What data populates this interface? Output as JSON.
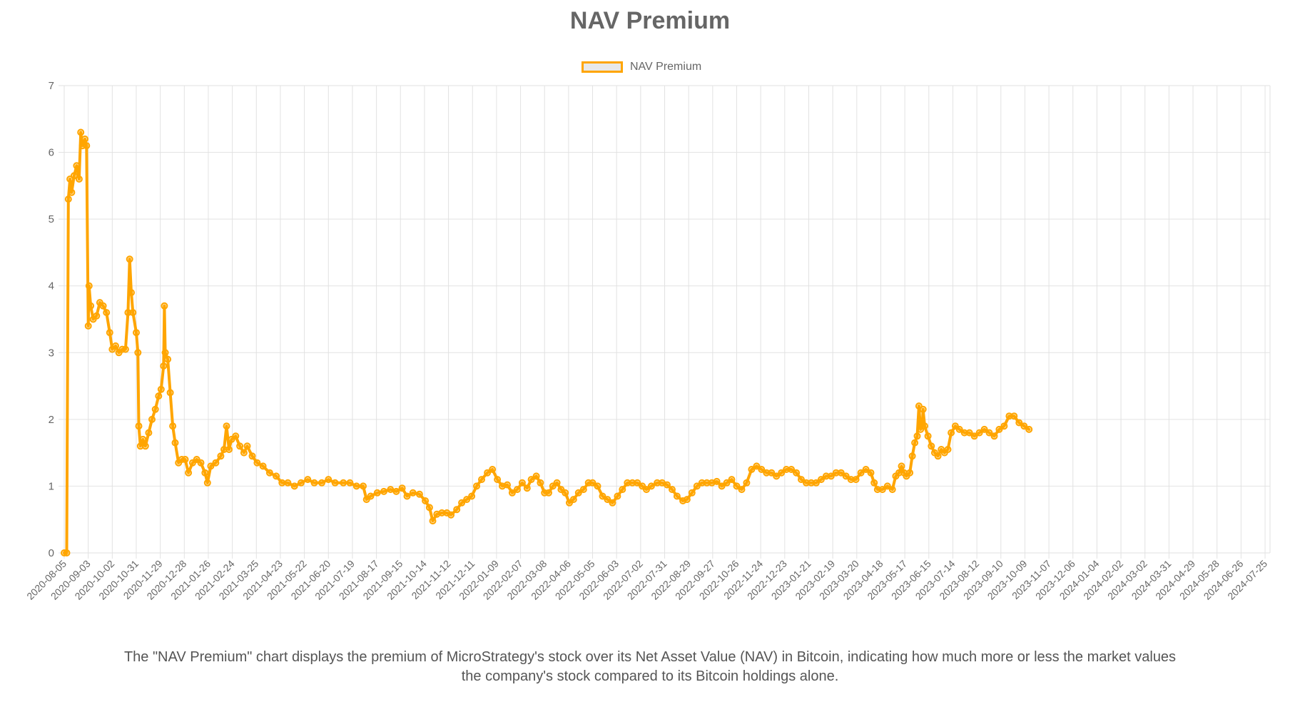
{
  "chart_data": {
    "type": "line",
    "title": "NAV Premium",
    "xlabel": "",
    "ylabel": "",
    "ylim": [
      0,
      7
    ],
    "y_ticks": [
      "0",
      "1",
      "2",
      "3",
      "4",
      "5",
      "6",
      "7"
    ],
    "x_tick_labels": [
      "2020-08-05",
      "2020-09-03",
      "2020-10-02",
      "2020-10-31",
      "2020-11-29",
      "2020-12-28",
      "2021-01-26",
      "2021-02-24",
      "2021-03-25",
      "2021-04-23",
      "2021-05-22",
      "2021-06-20",
      "2021-07-19",
      "2021-08-17",
      "2021-09-15",
      "2021-10-14",
      "2021-11-12",
      "2021-12-11",
      "2022-01-09",
      "2022-02-07",
      "2022-03-08",
      "2022-04-06",
      "2022-05-05",
      "2022-06-03",
      "2022-07-02",
      "2022-07-31",
      "2022-08-29",
      "2022-09-27",
      "2022-10-26",
      "2022-11-24",
      "2022-12-23",
      "2023-01-21",
      "2023-02-19",
      "2023-03-20",
      "2023-04-18",
      "2023-05-17",
      "2023-06-15",
      "2023-07-14",
      "2023-08-12",
      "2023-09-10",
      "2023-10-09",
      "2023-11-07",
      "2023-12-06",
      "2024-01-04",
      "2024-02-02",
      "2024-03-02",
      "2024-03-31",
      "2024-04-29",
      "2024-05-28",
      "2024-06-26",
      "2024-07-25"
    ],
    "x_range_dates": [
      "2020-08-05",
      "2024-07-31"
    ],
    "grid": true,
    "legend_position": "top",
    "series": [
      {
        "name": "NAV Premium",
        "color": "#FFA500",
        "points": [
          [
            "2020-08-05",
            0.0
          ],
          [
            "2020-08-08",
            0.0
          ],
          [
            "2020-08-10",
            5.3
          ],
          [
            "2020-08-12",
            5.6
          ],
          [
            "2020-08-14",
            5.4
          ],
          [
            "2020-08-17",
            5.65
          ],
          [
            "2020-08-20",
            5.8
          ],
          [
            "2020-08-23",
            5.6
          ],
          [
            "2020-08-25",
            6.3
          ],
          [
            "2020-08-27",
            6.1
          ],
          [
            "2020-08-30",
            6.2
          ],
          [
            "2020-09-01",
            6.1
          ],
          [
            "2020-09-03",
            3.4
          ],
          [
            "2020-09-04",
            4.0
          ],
          [
            "2020-09-06",
            3.7
          ],
          [
            "2020-09-09",
            3.5
          ],
          [
            "2020-09-13",
            3.55
          ],
          [
            "2020-09-17",
            3.75
          ],
          [
            "2020-09-21",
            3.7
          ],
          [
            "2020-09-25",
            3.6
          ],
          [
            "2020-09-29",
            3.3
          ],
          [
            "2020-10-02",
            3.05
          ],
          [
            "2020-10-06",
            3.1
          ],
          [
            "2020-10-10",
            3.0
          ],
          [
            "2020-10-14",
            3.05
          ],
          [
            "2020-10-18",
            3.05
          ],
          [
            "2020-10-21",
            3.6
          ],
          [
            "2020-10-23",
            4.4
          ],
          [
            "2020-10-25",
            3.9
          ],
          [
            "2020-10-27",
            3.6
          ],
          [
            "2020-10-31",
            3.3
          ],
          [
            "2020-11-02",
            3.0
          ],
          [
            "2020-11-03",
            1.9
          ],
          [
            "2020-11-05",
            1.6
          ],
          [
            "2020-11-08",
            1.7
          ],
          [
            "2020-11-11",
            1.6
          ],
          [
            "2020-11-15",
            1.8
          ],
          [
            "2020-11-19",
            2.0
          ],
          [
            "2020-11-23",
            2.15
          ],
          [
            "2020-11-27",
            2.35
          ],
          [
            "2020-11-30",
            2.45
          ],
          [
            "2020-12-03",
            2.8
          ],
          [
            "2020-12-04",
            3.7
          ],
          [
            "2020-12-05",
            3.0
          ],
          [
            "2020-12-08",
            2.9
          ],
          [
            "2020-12-11",
            2.4
          ],
          [
            "2020-12-14",
            1.9
          ],
          [
            "2020-12-17",
            1.65
          ],
          [
            "2020-12-21",
            1.35
          ],
          [
            "2020-12-25",
            1.4
          ],
          [
            "2020-12-29",
            1.4
          ],
          [
            "2021-01-02",
            1.2
          ],
          [
            "2021-01-07",
            1.35
          ],
          [
            "2021-01-12",
            1.4
          ],
          [
            "2021-01-17",
            1.35
          ],
          [
            "2021-01-22",
            1.2
          ],
          [
            "2021-01-25",
            1.05
          ],
          [
            "2021-01-29",
            1.3
          ],
          [
            "2021-02-04",
            1.35
          ],
          [
            "2021-02-10",
            1.45
          ],
          [
            "2021-02-14",
            1.55
          ],
          [
            "2021-02-17",
            1.9
          ],
          [
            "2021-02-20",
            1.55
          ],
          [
            "2021-02-23",
            1.7
          ],
          [
            "2021-02-28",
            1.75
          ],
          [
            "2021-03-05",
            1.6
          ],
          [
            "2021-03-10",
            1.5
          ],
          [
            "2021-03-14",
            1.6
          ],
          [
            "2021-03-20",
            1.45
          ],
          [
            "2021-03-26",
            1.35
          ],
          [
            "2021-04-02",
            1.3
          ],
          [
            "2021-04-10",
            1.2
          ],
          [
            "2021-04-18",
            1.15
          ],
          [
            "2021-04-25",
            1.05
          ],
          [
            "2021-05-02",
            1.05
          ],
          [
            "2021-05-10",
            1.0
          ],
          [
            "2021-05-18",
            1.05
          ],
          [
            "2021-05-26",
            1.1
          ],
          [
            "2021-06-03",
            1.05
          ],
          [
            "2021-06-12",
            1.05
          ],
          [
            "2021-06-20",
            1.1
          ],
          [
            "2021-06-28",
            1.05
          ],
          [
            "2021-07-08",
            1.05
          ],
          [
            "2021-07-16",
            1.05
          ],
          [
            "2021-07-24",
            1.0
          ],
          [
            "2021-08-01",
            1.0
          ],
          [
            "2021-08-05",
            0.8
          ],
          [
            "2021-08-10",
            0.85
          ],
          [
            "2021-08-18",
            0.9
          ],
          [
            "2021-08-26",
            0.92
          ],
          [
            "2021-09-03",
            0.95
          ],
          [
            "2021-09-10",
            0.92
          ],
          [
            "2021-09-17",
            0.97
          ],
          [
            "2021-09-23",
            0.85
          ],
          [
            "2021-09-30",
            0.9
          ],
          [
            "2021-10-08",
            0.88
          ],
          [
            "2021-10-15",
            0.78
          ],
          [
            "2021-10-20",
            0.68
          ],
          [
            "2021-10-24",
            0.48
          ],
          [
            "2021-10-29",
            0.58
          ],
          [
            "2021-11-04",
            0.6
          ],
          [
            "2021-11-10",
            0.6
          ],
          [
            "2021-11-15",
            0.57
          ],
          [
            "2021-11-22",
            0.65
          ],
          [
            "2021-11-28",
            0.75
          ],
          [
            "2021-12-04",
            0.8
          ],
          [
            "2021-12-10",
            0.85
          ],
          [
            "2021-12-16",
            1.0
          ],
          [
            "2021-12-22",
            1.1
          ],
          [
            "2021-12-29",
            1.2
          ],
          [
            "2022-01-04",
            1.25
          ],
          [
            "2022-01-10",
            1.1
          ],
          [
            "2022-01-16",
            1.0
          ],
          [
            "2022-01-22",
            1.02
          ],
          [
            "2022-01-28",
            0.9
          ],
          [
            "2022-02-03",
            0.95
          ],
          [
            "2022-02-09",
            1.05
          ],
          [
            "2022-02-15",
            0.97
          ],
          [
            "2022-02-20",
            1.1
          ],
          [
            "2022-02-26",
            1.15
          ],
          [
            "2022-03-03",
            1.05
          ],
          [
            "2022-03-08",
            0.9
          ],
          [
            "2022-03-13",
            0.9
          ],
          [
            "2022-03-18",
            1.0
          ],
          [
            "2022-03-23",
            1.05
          ],
          [
            "2022-03-28",
            0.95
          ],
          [
            "2022-04-02",
            0.9
          ],
          [
            "2022-04-07",
            0.75
          ],
          [
            "2022-04-12",
            0.8
          ],
          [
            "2022-04-18",
            0.9
          ],
          [
            "2022-04-24",
            0.95
          ],
          [
            "2022-04-30",
            1.05
          ],
          [
            "2022-05-05",
            1.05
          ],
          [
            "2022-05-11",
            1.0
          ],
          [
            "2022-05-17",
            0.85
          ],
          [
            "2022-05-23",
            0.8
          ],
          [
            "2022-05-29",
            0.75
          ],
          [
            "2022-06-04",
            0.85
          ],
          [
            "2022-06-10",
            0.95
          ],
          [
            "2022-06-16",
            1.05
          ],
          [
            "2022-06-22",
            1.05
          ],
          [
            "2022-06-28",
            1.05
          ],
          [
            "2022-07-04",
            1.0
          ],
          [
            "2022-07-09",
            0.95
          ],
          [
            "2022-07-15",
            1.0
          ],
          [
            "2022-07-22",
            1.05
          ],
          [
            "2022-07-28",
            1.05
          ],
          [
            "2022-08-03",
            1.02
          ],
          [
            "2022-08-09",
            0.95
          ],
          [
            "2022-08-15",
            0.85
          ],
          [
            "2022-08-22",
            0.78
          ],
          [
            "2022-08-27",
            0.8
          ],
          [
            "2022-09-02",
            0.9
          ],
          [
            "2022-09-08",
            1.0
          ],
          [
            "2022-09-14",
            1.05
          ],
          [
            "2022-09-20",
            1.05
          ],
          [
            "2022-09-26",
            1.05
          ],
          [
            "2022-10-02",
            1.07
          ],
          [
            "2022-10-08",
            1.0
          ],
          [
            "2022-10-14",
            1.05
          ],
          [
            "2022-10-20",
            1.1
          ],
          [
            "2022-10-26",
            1.0
          ],
          [
            "2022-11-01",
            0.95
          ],
          [
            "2022-11-07",
            1.05
          ],
          [
            "2022-11-13",
            1.25
          ],
          [
            "2022-11-19",
            1.3
          ],
          [
            "2022-11-25",
            1.25
          ],
          [
            "2022-12-01",
            1.2
          ],
          [
            "2022-12-07",
            1.2
          ],
          [
            "2022-12-13",
            1.15
          ],
          [
            "2022-12-19",
            1.2
          ],
          [
            "2022-12-25",
            1.25
          ],
          [
            "2022-12-31",
            1.25
          ],
          [
            "2023-01-06",
            1.2
          ],
          [
            "2023-01-12",
            1.1
          ],
          [
            "2023-01-18",
            1.05
          ],
          [
            "2023-01-24",
            1.05
          ],
          [
            "2023-01-30",
            1.05
          ],
          [
            "2023-02-05",
            1.1
          ],
          [
            "2023-02-11",
            1.15
          ],
          [
            "2023-02-17",
            1.15
          ],
          [
            "2023-02-23",
            1.2
          ],
          [
            "2023-03-01",
            1.2
          ],
          [
            "2023-03-07",
            1.15
          ],
          [
            "2023-03-13",
            1.1
          ],
          [
            "2023-03-19",
            1.1
          ],
          [
            "2023-03-25",
            1.2
          ],
          [
            "2023-03-31",
            1.25
          ],
          [
            "2023-04-06",
            1.2
          ],
          [
            "2023-04-10",
            1.05
          ],
          [
            "2023-04-14",
            0.95
          ],
          [
            "2023-04-20",
            0.95
          ],
          [
            "2023-04-26",
            1.0
          ],
          [
            "2023-05-02",
            0.95
          ],
          [
            "2023-05-06",
            1.15
          ],
          [
            "2023-05-10",
            1.2
          ],
          [
            "2023-05-13",
            1.3
          ],
          [
            "2023-05-16",
            1.2
          ],
          [
            "2023-05-19",
            1.15
          ],
          [
            "2023-05-23",
            1.2
          ],
          [
            "2023-05-26",
            1.45
          ],
          [
            "2023-05-29",
            1.65
          ],
          [
            "2023-06-01",
            1.75
          ],
          [
            "2023-06-03",
            2.2
          ],
          [
            "2023-06-05",
            1.85
          ],
          [
            "2023-06-07",
            1.9
          ],
          [
            "2023-06-08",
            2.15
          ],
          [
            "2023-06-10",
            1.9
          ],
          [
            "2023-06-14",
            1.75
          ],
          [
            "2023-06-18",
            1.6
          ],
          [
            "2023-06-22",
            1.5
          ],
          [
            "2023-06-26",
            1.45
          ],
          [
            "2023-06-30",
            1.55
          ],
          [
            "2023-07-04",
            1.5
          ],
          [
            "2023-07-08",
            1.55
          ],
          [
            "2023-07-12",
            1.8
          ],
          [
            "2023-07-17",
            1.9
          ],
          [
            "2023-07-22",
            1.85
          ],
          [
            "2023-07-28",
            1.8
          ],
          [
            "2023-08-03",
            1.8
          ],
          [
            "2023-08-09",
            1.75
          ],
          [
            "2023-08-15",
            1.8
          ],
          [
            "2023-08-21",
            1.85
          ],
          [
            "2023-08-27",
            1.8
          ],
          [
            "2023-09-02",
            1.75
          ],
          [
            "2023-09-08",
            1.85
          ],
          [
            "2023-09-14",
            1.9
          ],
          [
            "2023-09-20",
            2.05
          ],
          [
            "2023-09-26",
            2.05
          ],
          [
            "2023-10-02",
            1.95
          ],
          [
            "2023-10-08",
            1.9
          ],
          [
            "2023-10-14",
            1.85
          ]
        ]
      }
    ]
  },
  "caption": "The \"NAV Premium\" chart displays the premium of MicroStrategy's stock over its Net Asset Value (NAV) in Bitcoin, indicating how much more or less the market values the company's stock compared to its Bitcoin holdings alone."
}
